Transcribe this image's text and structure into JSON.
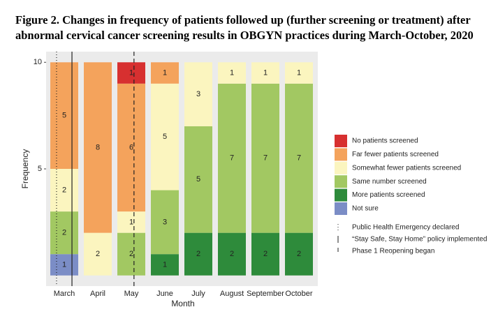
{
  "chart_data": {
    "type": "stacked_bar",
    "title": "Figure 2. Changes in frequency of patients followed up (further screening or treatment) after abnormal cervical cancer screening results in OBGYN practices during March-October, 2020",
    "x_label": "Month",
    "y_label": "Frequency",
    "categories": [
      "March",
      "April",
      "May",
      "June",
      "July",
      "August",
      "September",
      "October"
    ],
    "series": [
      {
        "name": "Not sure",
        "color": "#7b8dc6",
        "values": [
          1,
          null,
          null,
          null,
          null,
          null,
          null,
          null
        ]
      },
      {
        "name": "More patients screened",
        "color": "#2e8b3b",
        "values": [
          null,
          null,
          null,
          1,
          2,
          2,
          2,
          2
        ]
      },
      {
        "name": "Same number screened",
        "color": "#a2c862",
        "values": [
          2,
          null,
          2,
          3,
          5,
          7,
          7,
          7
        ]
      },
      {
        "name": "Somewhat fewer patients screened",
        "color": "#fbf5bf",
        "values": [
          2,
          2,
          1,
          5,
          3,
          1,
          1,
          1
        ]
      },
      {
        "name": "Far fewer patients screened",
        "color": "#f4a35c",
        "values": [
          5,
          8,
          6,
          1,
          null,
          null,
          null,
          null
        ]
      },
      {
        "name": "No patients screened",
        "color": "#d73030",
        "values": [
          null,
          null,
          1,
          null,
          null,
          null,
          null,
          null
        ]
      }
    ],
    "ylim": [
      -0.5,
      10.5
    ],
    "yticks": [
      5,
      10
    ],
    "reference_lines": [
      {
        "label": "Public Health Emergency declared",
        "style": "dotted",
        "x": 0.77
      },
      {
        "label": "“Stay Safe, Stay Home” policy implemented",
        "style": "solid",
        "x": 1.23
      },
      {
        "label": "Phase 1 Reopening began",
        "style": "dashed",
        "x": 3.08
      }
    ]
  }
}
